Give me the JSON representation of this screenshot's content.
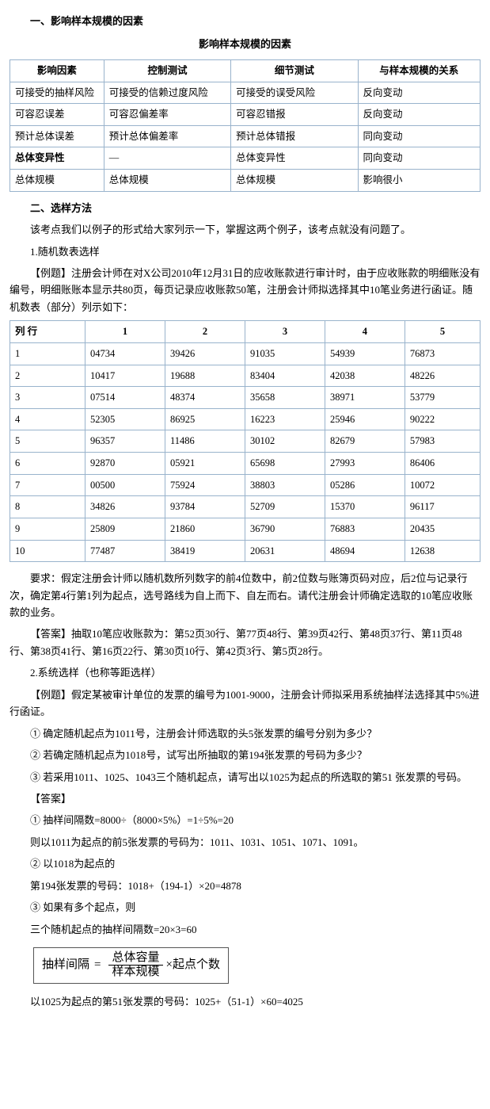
{
  "section1_title": "一、影响样本规模的因素",
  "table1_title": "影响样本规模的因素",
  "table1": {
    "headers": [
      "影响因素",
      "控制测试",
      "细节测试",
      "与样本规模的关系"
    ],
    "rows": [
      [
        "可接受的抽样风险",
        "可接受的信赖过度风险",
        "可接受的误受风险",
        "反向变动"
      ],
      [
        "可容忍误差",
        "可容忍偏差率",
        "可容忍错报",
        "反向变动"
      ],
      [
        "预计总体误差",
        "预计总体偏差率",
        "预计总体错报",
        "同向变动"
      ],
      [
        "总体变异性",
        "—",
        "总体变异性",
        "同向变动"
      ],
      [
        "总体规模",
        "总体规模",
        "总体规模",
        "影响很小"
      ]
    ],
    "bold_row_index": 3,
    "header_bg": "#ffffff",
    "border_color": "#99b3cc"
  },
  "section2_title": "二、选样方法",
  "para_intro": "该考点我们以例子的形式给大家列示一下，掌握这两个例子，该考点就没有问题了。",
  "sub1_title": "1.随机数表选样",
  "ex1_prompt": "【例题】注册会计师在对X公司2010年12月31日的应收账款进行审计时，由于应收账款的明细账没有编号，明细账账本显示共80页，每页记录应收账款50笔，注册会计师拟选择其中10笔业务进行函证。随机数表（部分）列示如下：",
  "table2": {
    "headers": [
      "列  行",
      "1",
      "2",
      "3",
      "4",
      "5"
    ],
    "rows": [
      [
        "1",
        "04734",
        "39426",
        "91035",
        "54939",
        "76873"
      ],
      [
        "2",
        "10417",
        "19688",
        "83404",
        "42038",
        "48226"
      ],
      [
        "3",
        "07514",
        "48374",
        "35658",
        "38971",
        "53779"
      ],
      [
        "4",
        "52305",
        "86925",
        "16223",
        "25946",
        "90222"
      ],
      [
        "5",
        "96357",
        "11486",
        "30102",
        "82679",
        "57983"
      ],
      [
        "6",
        "92870",
        "05921",
        "65698",
        "27993",
        "86406"
      ],
      [
        "7",
        "00500",
        "75924",
        "38803",
        "05286",
        "10072"
      ],
      [
        "8",
        "34826",
        "93784",
        "52709",
        "15370",
        "96117"
      ],
      [
        "9",
        "25809",
        "21860",
        "36790",
        "76883",
        "20435"
      ],
      [
        "10",
        "77487",
        "38419",
        "20631",
        "48694",
        "12638"
      ]
    ]
  },
  "ex1_req": "要求：假定注册会计师以随机数所列数字的前4位数中，前2位数与账簿页码对应，后2位与记录行次，确定第4行第1列为起点，选号路线为自上而下、自左而右。请代注册会计师确定选取的10笔应收账款的业务。",
  "ex1_ans": "【答案】抽取10笔应收账款为：第52页30行、第77页48行、第39页42行、第48页37行、第11页48行、第38页41行、第16页22行、第30页10行、第42页3行、第5页28行。",
  "sub2_title": "2.系统选样（也称等距选样）",
  "ex2_prompt": "【例题】假定某被审计单位的发票的编号为1001-9000，注册会计师拟采用系统抽样法选择其中5%进行函证。",
  "ex2_q1": "① 确定随机起点为1011号，注册会计师选取的头5张发票的编号分别为多少？",
  "ex2_q2": "② 若确定随机起点为1018号，试写出所抽取的第194张发票的号码为多少？",
  "ex2_q3": "③ 若采用1011、1025、1043三个随机起点，请写出以1025为起点的所选取的第51 张发票的号码。",
  "ans_label": "【答案】",
  "ans1_a": "① 抽样间隔数=8000÷（8000×5%）=1÷5%=20",
  "ans1_b": "则以1011为起点的前5张发票的号码为：1011、1031、1051、1071、1091。",
  "ans2_a": "② 以1018为起点的",
  "ans2_b": "第194张发票的号码：1018+（194-1）×20=4878",
  "ans3_a": "③ 如果有多个起点，则",
  "ans3_b": "三个随机起点的抽样间隔数=20×3=60",
  "formula": {
    "lhs": "抽样间隔",
    "eq": "=",
    "num": "总体容量",
    "den": "样本规模",
    "times": "×",
    "rhs": "起点个数"
  },
  "ans3_c": "以1025为起点的第51张发票的号码：1025+（51-1）×60=4025"
}
